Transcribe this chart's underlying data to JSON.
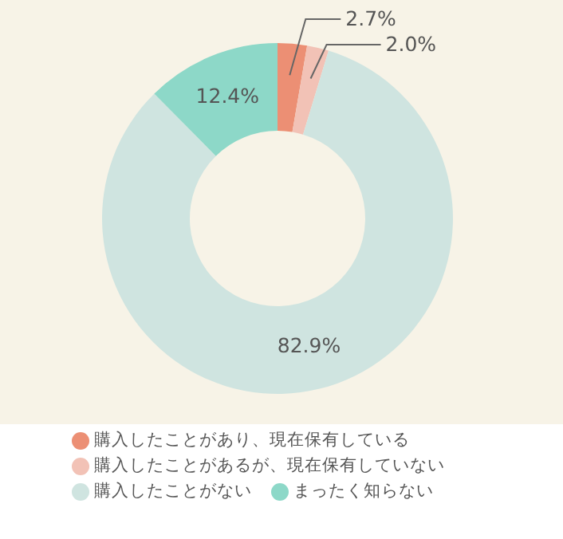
{
  "chart_data": {
    "type": "donut",
    "categories": [
      "購入したことがあり、現在保有している",
      "購入したことがあるが、現在保有していない",
      "購入したことがない",
      "まったく知らない"
    ],
    "values": [
      2.7,
      2.0,
      82.9,
      12.4
    ],
    "colors": [
      "#ec8f74",
      "#f2c2b6",
      "#cfe4e0",
      "#8dd8c8"
    ],
    "value_labels": [
      "2.7%",
      "2.0%",
      "82.9%",
      "12.4%"
    ],
    "legend": "bottom"
  }
}
